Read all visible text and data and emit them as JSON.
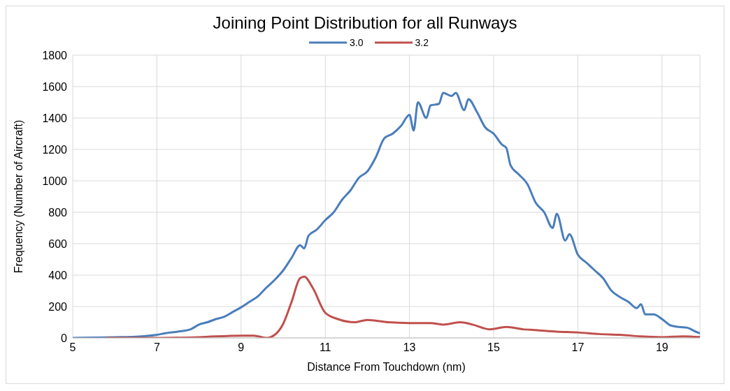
{
  "chart_data": {
    "type": "line",
    "title": "Joining Point Distribution for all Runways",
    "xlabel": "Distance From Touchdown (nm)",
    "ylabel": "Frequency (Number of Aircraft)",
    "xlim": [
      5,
      19.9
    ],
    "xticks": [
      5,
      7,
      9,
      11,
      13,
      15,
      17,
      19
    ],
    "ylim": [
      0,
      1800
    ],
    "yticks": [
      0,
      200,
      400,
      600,
      800,
      1000,
      1200,
      1400,
      1600,
      1800
    ],
    "grid": true,
    "legend": "top",
    "marker": "none",
    "line_style": "solid",
    "series": [
      {
        "name": "3.0",
        "color": "#4a7ebb",
        "x": [
          5,
          5.5,
          6,
          6.5,
          7,
          7.2,
          7.5,
          7.8,
          8,
          8.2,
          8.4,
          8.6,
          8.8,
          9,
          9.2,
          9.4,
          9.6,
          9.8,
          10,
          10.2,
          10.4,
          10.5,
          10.6,
          10.8,
          11,
          11.2,
          11.4,
          11.6,
          11.8,
          12,
          12.2,
          12.4,
          12.6,
          12.8,
          13,
          13.1,
          13.2,
          13.4,
          13.5,
          13.7,
          13.8,
          14,
          14.1,
          14.3,
          14.4,
          14.6,
          14.8,
          15,
          15.2,
          15.3,
          15.4,
          15.6,
          15.8,
          16,
          16.2,
          16.4,
          16.5,
          16.7,
          16.8,
          17,
          17.2,
          17.4,
          17.6,
          17.8,
          18,
          18.2,
          18.4,
          18.5,
          18.6,
          18.8,
          19,
          19.2,
          19.4,
          19.6,
          19.8,
          19.9
        ],
        "values": [
          0,
          2,
          5,
          8,
          20,
          30,
          40,
          55,
          85,
          100,
          120,
          135,
          165,
          195,
          230,
          265,
          320,
          370,
          430,
          510,
          590,
          570,
          650,
          690,
          750,
          800,
          880,
          940,
          1020,
          1060,
          1150,
          1270,
          1300,
          1350,
          1420,
          1320,
          1500,
          1400,
          1480,
          1490,
          1560,
          1540,
          1560,
          1450,
          1520,
          1440,
          1340,
          1300,
          1230,
          1210,
          1100,
          1040,
          980,
          860,
          800,
          700,
          790,
          620,
          660,
          530,
          480,
          430,
          380,
          300,
          260,
          230,
          190,
          215,
          150,
          150,
          120,
          80,
          70,
          65,
          40,
          30
        ]
      },
      {
        "name": "3.2",
        "color": "#c0504d",
        "x": [
          5.8,
          7,
          8,
          9,
          9.3,
          9.6,
          9.8,
          10,
          10.2,
          10.4,
          10.5,
          10.7,
          11,
          11.3,
          11.7,
          12,
          12.5,
          13,
          13.5,
          13.8,
          14.2,
          14.5,
          14.9,
          15.3,
          15.7,
          16,
          16.5,
          17,
          17.5,
          18,
          18.5,
          19,
          19.5,
          19.9
        ],
        "values": [
          0,
          0,
          5,
          15,
          15,
          0,
          20,
          90,
          230,
          380,
          390,
          320,
          160,
          120,
          100,
          115,
          100,
          95,
          95,
          85,
          100,
          85,
          55,
          70,
          55,
          50,
          40,
          35,
          25,
          20,
          10,
          5,
          10,
          5
        ]
      }
    ]
  }
}
